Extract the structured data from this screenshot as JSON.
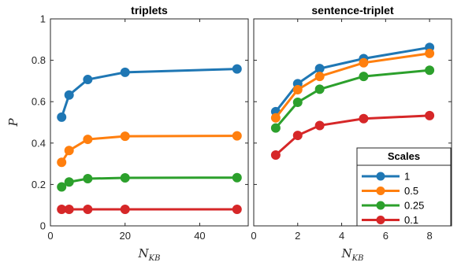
{
  "colors": {
    "1": "#1f77b4",
    "0.5": "#ff7f0e",
    "0.25": "#2ca02c",
    "0.1": "#d62728",
    "axis": "#262626"
  },
  "legend": {
    "title": "Scales",
    "placement": "bottom-right of right panel"
  },
  "chart_data": [
    {
      "type": "line",
      "title": "triplets",
      "xlabel": "N_KB",
      "ylabel": "P",
      "xlim": [
        0,
        53
      ],
      "ylim": [
        0,
        1
      ],
      "xticks": [
        0,
        20,
        40
      ],
      "xtick_labels": [
        "0",
        "20",
        "40"
      ],
      "yticks": [
        0,
        0.2,
        0.4,
        0.6,
        0.8,
        1
      ],
      "ytick_labels": [
        "0",
        "0.2",
        "0.4",
        "0.6",
        "0.8",
        "1"
      ],
      "series": [
        {
          "name": "1",
          "x": [
            3,
            5,
            10,
            20,
            50
          ],
          "y": [
            0.525,
            0.632,
            0.707,
            0.742,
            0.758
          ]
        },
        {
          "name": "0.5",
          "x": [
            3,
            5,
            10,
            20,
            50
          ],
          "y": [
            0.307,
            0.364,
            0.418,
            0.433,
            0.435
          ]
        },
        {
          "name": "0.25",
          "x": [
            3,
            5,
            10,
            20,
            50
          ],
          "y": [
            0.188,
            0.212,
            0.228,
            0.232,
            0.233
          ]
        },
        {
          "name": "0.1",
          "x": [
            3,
            5,
            10,
            20,
            50
          ],
          "y": [
            0.08,
            0.08,
            0.08,
            0.08,
            0.08
          ]
        }
      ]
    },
    {
      "type": "line",
      "title": "sentence-triplet",
      "xlabel": "N_KB",
      "ylabel": "",
      "xlim": [
        0,
        9
      ],
      "ylim": [
        0,
        1
      ],
      "xticks": [
        0,
        2,
        4,
        6,
        8
      ],
      "xtick_labels": [
        "0",
        "2",
        "4",
        "6",
        "8"
      ],
      "yticks": [],
      "ytick_labels": [],
      "series": [
        {
          "name": "1",
          "x": [
            1,
            2,
            3,
            5,
            8
          ],
          "y": [
            0.552,
            0.687,
            0.76,
            0.808,
            0.862
          ]
        },
        {
          "name": "0.5",
          "x": [
            1,
            2,
            3,
            5,
            8
          ],
          "y": [
            0.522,
            0.658,
            0.722,
            0.788,
            0.833
          ]
        },
        {
          "name": "0.25",
          "x": [
            1,
            2,
            3,
            5,
            8
          ],
          "y": [
            0.473,
            0.597,
            0.66,
            0.722,
            0.752
          ]
        },
        {
          "name": "0.1",
          "x": [
            1,
            2,
            3,
            5,
            8
          ],
          "y": [
            0.342,
            0.437,
            0.485,
            0.518,
            0.533
          ]
        }
      ]
    }
  ]
}
